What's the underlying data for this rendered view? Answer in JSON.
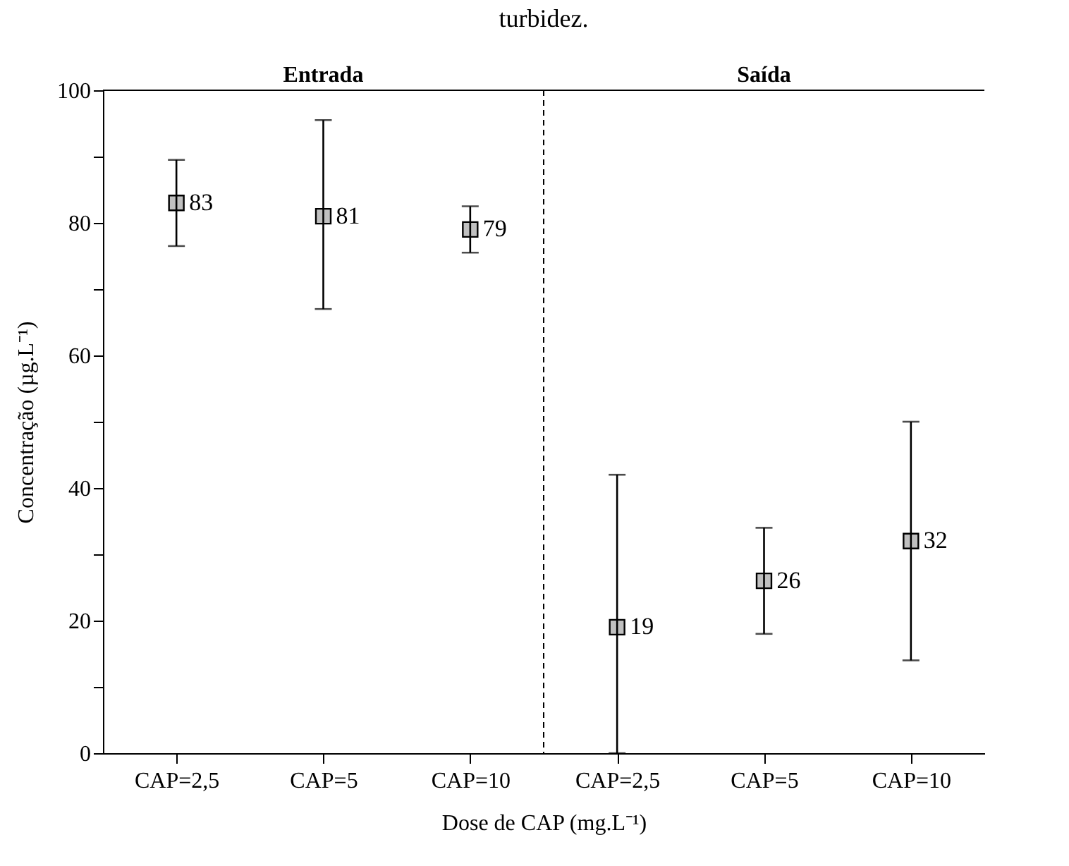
{
  "chart_data": {
    "type": "scatter",
    "title": "turbidez.",
    "xlabel": "Dose de CAP (mg.L⁻¹)",
    "ylabel": "Concentração (µg.L⁻¹)",
    "categories": [
      "CAP=2,5",
      "CAP=5",
      "CAP=10",
      "CAP=2,5",
      "CAP=5",
      "CAP=10"
    ],
    "series": [
      {
        "color": "#c0c0c0",
        "values": [
          83,
          81,
          79,
          19,
          26,
          32
        ],
        "errors": [
          [
            76.5,
            89.5
          ],
          [
            67,
            95.5
          ],
          [
            75.5,
            82.5
          ],
          [
            0,
            42
          ],
          [
            18,
            34
          ],
          [
            14,
            50
          ]
        ]
      }
    ],
    "data_labels": true,
    "marker": "square",
    "ylim": [
      0,
      100
    ],
    "yticks": [
      0,
      {
        "value": 10,
        "label": null
      },
      20,
      {
        "value": 30,
        "label": null
      },
      40,
      {
        "value": 50,
        "label": null
      },
      60,
      {
        "value": 70,
        "label": null
      },
      80,
      {
        "value": 90,
        "label": null
      },
      100
    ],
    "annotations": [
      "Entrada",
      "Saída"
    ],
    "grid": false
  }
}
